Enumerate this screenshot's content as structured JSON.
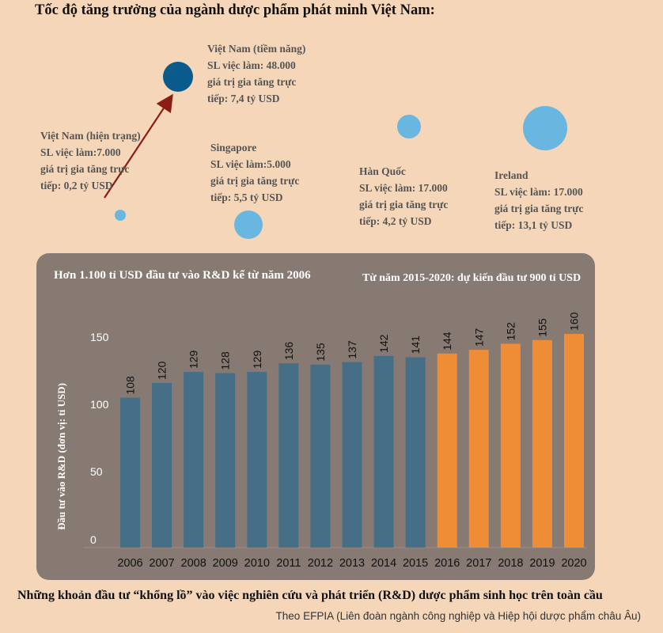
{
  "title": "Tốc độ tăng trưởng của ngành dược phẩm phát minh Việt Nam:",
  "colors": {
    "background": "#f5d6b8",
    "panel": "#867a73",
    "bubble": "#69b6e1",
    "bubble_highlight": "#0a5b8c",
    "arrow": "#8b1d14",
    "bar_historical": "#466f87",
    "bar_forecast": "#ef8c36"
  },
  "bubbles": [
    {
      "country": "Việt Nam (tiềm năng)",
      "jobs": "SL việc làm: 48.000",
      "value_line1": "giá trị gia tăng trực",
      "value_line2": "tiếp: 7,4 tỷ USD"
    },
    {
      "country": "Việt Nam (hiện trạng)",
      "jobs": "SL việc làm:7.000",
      "value_line1": "giá trị gia tăng trực",
      "value_line2": "tiếp: 0,2 tỷ USD"
    },
    {
      "country": "Singapore",
      "jobs": "SL việc làm:5.000",
      "value_line1": "giá trị gia tăng trực",
      "value_line2": "tiếp: 5,5 tỷ USD"
    },
    {
      "country": "Hàn Quốc",
      "jobs": "SL việc làm: 17.000",
      "value_line1": "giá trị gia tăng trực",
      "value_line2": "tiếp: 4,2 tỷ USD"
    },
    {
      "country": "Ireland",
      "jobs": "SL việc làm: 17.000",
      "value_line1": "giá trị gia tăng trực",
      "value_line2": "tiếp: 13,1 tỷ USD"
    }
  ],
  "panel": {
    "title_left": "Hơn 1.100 tỉ USD đầu tư vào R&D kể từ năm 2006",
    "title_right": "Từ năm 2015-2020: dự kiến đầu tư 900 tỉ USD"
  },
  "chart_data": {
    "type": "bar",
    "categories": [
      "2006",
      "2007",
      "2008",
      "2009",
      "2010",
      "2011",
      "2012",
      "2013",
      "2014",
      "2015",
      "2016",
      "2017",
      "2018",
      "2019",
      "2020"
    ],
    "values": [
      108,
      120,
      129,
      128,
      129,
      136,
      135,
      137,
      142,
      141,
      144,
      147,
      152,
      155,
      160
    ],
    "forecast_from_index": 10,
    "ylabel": "Đầu tư vào R&D (đơn vị: tỉ USD)",
    "y_ticks": [
      0,
      50,
      100,
      150
    ],
    "axis_break": "0 to 100 compressed",
    "grid": false,
    "data_labels": true
  },
  "footer": {
    "title": "Những khoản đầu tư “khổng lồ” vào việc nghiên cứu và phát triển (R&D) dược phẩm sinh học trên toàn cầu",
    "source": "Theo EFPIA (Liên đoàn ngành công nghiệp và Hiệp hội dược phẩm châu Âu)"
  }
}
